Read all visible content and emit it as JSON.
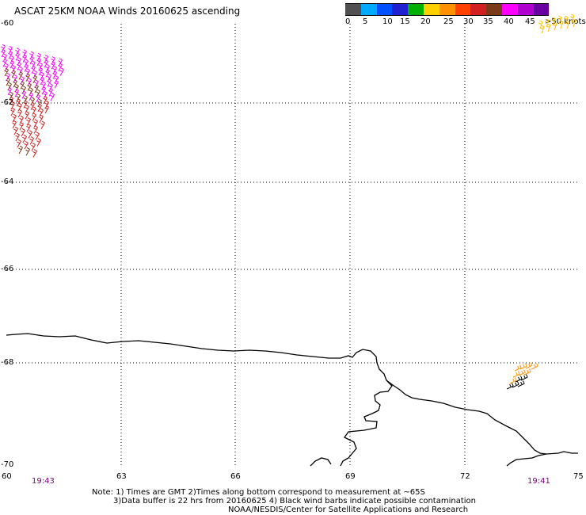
{
  "title": "ASCAT 25KM NOAA Winds 20160625 ascending",
  "legend": {
    "bins": [
      {
        "color": "#505050"
      },
      {
        "color": "#00aaff"
      },
      {
        "color": "#0050ff"
      },
      {
        "color": "#2020d0"
      },
      {
        "color": "#00b000"
      },
      {
        "color": "#ffd000"
      },
      {
        "color": "#ff9000"
      },
      {
        "color": "#ff4000"
      },
      {
        "color": "#d02020"
      },
      {
        "color": "#7a3a1a"
      },
      {
        "color": "#ff00ff"
      },
      {
        "color": "#b000d0"
      },
      {
        "color": "#6a00a0"
      }
    ],
    "labels": [
      "0",
      "5",
      "10",
      "15",
      "20",
      "25",
      "30",
      "35",
      "40",
      "45",
      ">50 knots"
    ]
  },
  "lat_labels": [
    "-60",
    "-62",
    "-64",
    "-66",
    "-68",
    "-70"
  ],
  "lon_labels": [
    "60",
    "63",
    "66",
    "69",
    "72",
    "75"
  ],
  "time_left": "19:43",
  "time_right": "19:41",
  "notes": {
    "line1": "Note: 1) Times are GMT 2)Times along bottom correspond to measurement at ~65S",
    "line2": "3)Data buffer is 22 hrs from 20160625 4) Black wind barbs indicate possible contamination",
    "line3": "NOAA/NESDIS/Center for Satellite Applications and Research"
  },
  "colors": {
    "magenta": "#ff00ff",
    "brown": "#7a3a1a",
    "red": "#d02020",
    "orange": "#ff9000",
    "yellow": "#ffc000",
    "black": "#000000",
    "purple": "#800080"
  }
}
